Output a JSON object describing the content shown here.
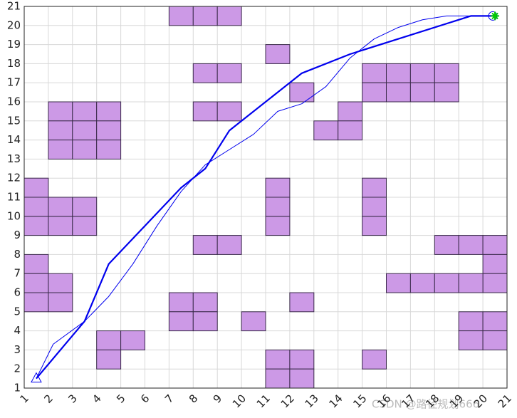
{
  "chart_data": {
    "type": "grid-path",
    "xlim": [
      1,
      21
    ],
    "ylim": [
      1,
      21
    ],
    "xticks": [
      1,
      2,
      3,
      4,
      5,
      6,
      7,
      8,
      9,
      10,
      11,
      12,
      13,
      14,
      15,
      16,
      17,
      18,
      19,
      20,
      21
    ],
    "yticks": [
      1,
      2,
      3,
      4,
      5,
      6,
      7,
      8,
      9,
      10,
      11,
      12,
      13,
      14,
      15,
      16,
      17,
      18,
      19,
      20,
      21
    ],
    "grid": true,
    "obstacle_color": "#cc99e6",
    "obstacles": [
      [
        7,
        20
      ],
      [
        8,
        20
      ],
      [
        9,
        20
      ],
      [
        11,
        18
      ],
      [
        8,
        17
      ],
      [
        9,
        17
      ],
      [
        12,
        16
      ],
      [
        15,
        17
      ],
      [
        16,
        17
      ],
      [
        17,
        17
      ],
      [
        18,
        17
      ],
      [
        15,
        16
      ],
      [
        16,
        16
      ],
      [
        17,
        16
      ],
      [
        18,
        16
      ],
      [
        8,
        15
      ],
      [
        9,
        15
      ],
      [
        2,
        15
      ],
      [
        3,
        15
      ],
      [
        4,
        15
      ],
      [
        2,
        14
      ],
      [
        3,
        14
      ],
      [
        4,
        14
      ],
      [
        2,
        13
      ],
      [
        3,
        13
      ],
      [
        4,
        13
      ],
      [
        14,
        15
      ],
      [
        13,
        14
      ],
      [
        14,
        14
      ],
      [
        1,
        11
      ],
      [
        1,
        10
      ],
      [
        2,
        10
      ],
      [
        3,
        10
      ],
      [
        1,
        9
      ],
      [
        2,
        9
      ],
      [
        3,
        9
      ],
      [
        11,
        11
      ],
      [
        11,
        10
      ],
      [
        11,
        9
      ],
      [
        15,
        11
      ],
      [
        15,
        10
      ],
      [
        15,
        9
      ],
      [
        8,
        8
      ],
      [
        9,
        8
      ],
      [
        1,
        7
      ],
      [
        1,
        6
      ],
      [
        1,
        5
      ],
      [
        2,
        6
      ],
      [
        2,
        5
      ],
      [
        18,
        8
      ],
      [
        19,
        8
      ],
      [
        20,
        8
      ],
      [
        20,
        7
      ],
      [
        20,
        6
      ],
      [
        16,
        6
      ],
      [
        17,
        6
      ],
      [
        18,
        6
      ],
      [
        19,
        6
      ],
      [
        7,
        5
      ],
      [
        8,
        5
      ],
      [
        7,
        4
      ],
      [
        8,
        4
      ],
      [
        12,
        5
      ],
      [
        10,
        4
      ],
      [
        19,
        4
      ],
      [
        20,
        4
      ],
      [
        19,
        3
      ],
      [
        20,
        3
      ],
      [
        4,
        3
      ],
      [
        5,
        3
      ],
      [
        4,
        2
      ],
      [
        11,
        2
      ],
      [
        12,
        2
      ],
      [
        11,
        1
      ],
      [
        12,
        1
      ],
      [
        15,
        2
      ]
    ],
    "series": [
      {
        "color": "#0000ee",
        "x": [
          1.5,
          3.5,
          4.5,
          7.5,
          8.5,
          9.5,
          12.5,
          14.5,
          19.5,
          20.5
        ],
        "y": [
          1.5,
          4.5,
          7.5,
          11.5,
          12.5,
          14.5,
          17.5,
          18.5,
          20.5,
          20.5
        ]
      },
      {
        "color": "#0000ee",
        "x": [
          1.5,
          2.2,
          3.5,
          4.5,
          5.5,
          6.5,
          7.5,
          8.5,
          9.5,
          10.5,
          11.5,
          12.5,
          13.5,
          14.5,
          15.5,
          16.5,
          17.5,
          18.5,
          20.5
        ],
        "y": [
          1.5,
          3.3,
          4.5,
          5.8,
          7.5,
          9.5,
          11.3,
          12.7,
          13.5,
          14.3,
          15.5,
          15.9,
          16.8,
          18.3,
          19.3,
          19.9,
          20.3,
          20.5,
          20.5
        ]
      }
    ],
    "start": [
      1.5,
      1.5
    ],
    "goal": [
      20.5,
      20.5
    ],
    "watermark": "CSDN @路径规划666"
  }
}
